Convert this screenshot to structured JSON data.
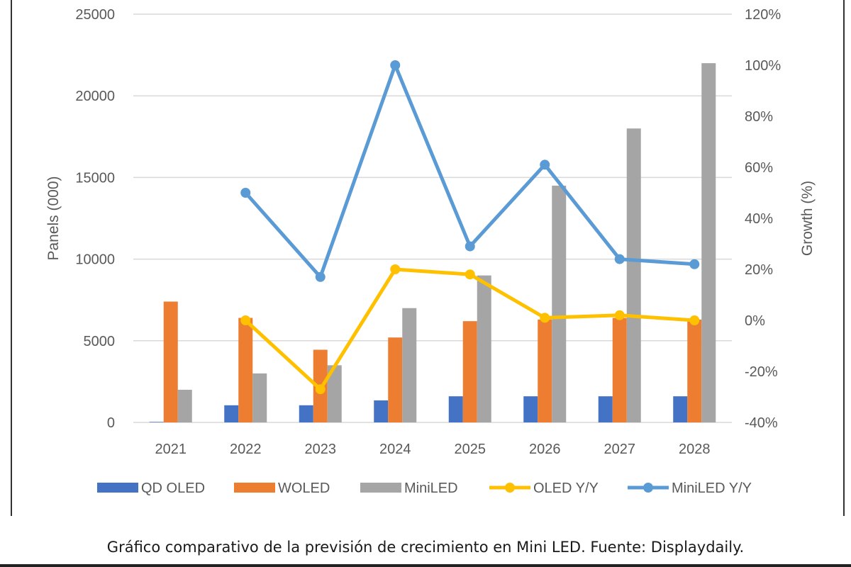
{
  "caption": "Gráfico comparativo de la previsión de crecimiento en Mini LED. Fuente: Displaydaily.",
  "chart_data": {
    "type": "bar",
    "title": "",
    "categories": [
      "2021",
      "2022",
      "2023",
      "2024",
      "2025",
      "2026",
      "2027",
      "2028"
    ],
    "xlabel": "",
    "ylabel": "Panels (000)",
    "ylabel_right": "Growth (%)",
    "ylim": [
      0,
      25000
    ],
    "yticks": [
      0,
      5000,
      10000,
      15000,
      20000,
      25000
    ],
    "ylim_right": [
      -40,
      120
    ],
    "yticks_right": [
      -40,
      -20,
      0,
      20,
      40,
      60,
      80,
      100,
      120
    ],
    "yticks_right_labels": [
      "-40%",
      "-20%",
      "0%",
      "20%",
      "40%",
      "60%",
      "80%",
      "100%",
      "120%"
    ],
    "grid": true,
    "legend_position": "bottom",
    "series": [
      {
        "name": "QD OLED",
        "kind": "bar",
        "axis": "left",
        "color": "#4472C4",
        "values": [
          30,
          1050,
          1050,
          1350,
          1600,
          1600,
          1600,
          1600
        ]
      },
      {
        "name": "WOLED",
        "kind": "bar",
        "axis": "left",
        "color": "#ED7D31",
        "values": [
          7400,
          6400,
          4450,
          5200,
          6200,
          6300,
          6400,
          6300
        ]
      },
      {
        "name": "MiniLED",
        "kind": "bar",
        "axis": "left",
        "color": "#A5A5A5",
        "values": [
          2000,
          3000,
          3500,
          7000,
          9000,
          14500,
          18000,
          22000
        ]
      },
      {
        "name": "OLED Y/Y",
        "kind": "line",
        "axis": "right",
        "color": "#FFC000",
        "values": [
          null,
          0,
          -27,
          20,
          18,
          1,
          2,
          0
        ]
      },
      {
        "name": "MiniLED Y/Y",
        "kind": "line",
        "axis": "right",
        "color": "#5B9BD5",
        "values": [
          null,
          50,
          17,
          100,
          29,
          61,
          24,
          22
        ]
      }
    ],
    "legend": [
      "QD OLED",
      "WOLED",
      "MiniLED",
      "OLED Y/Y",
      "MiniLED Y/Y"
    ]
  }
}
